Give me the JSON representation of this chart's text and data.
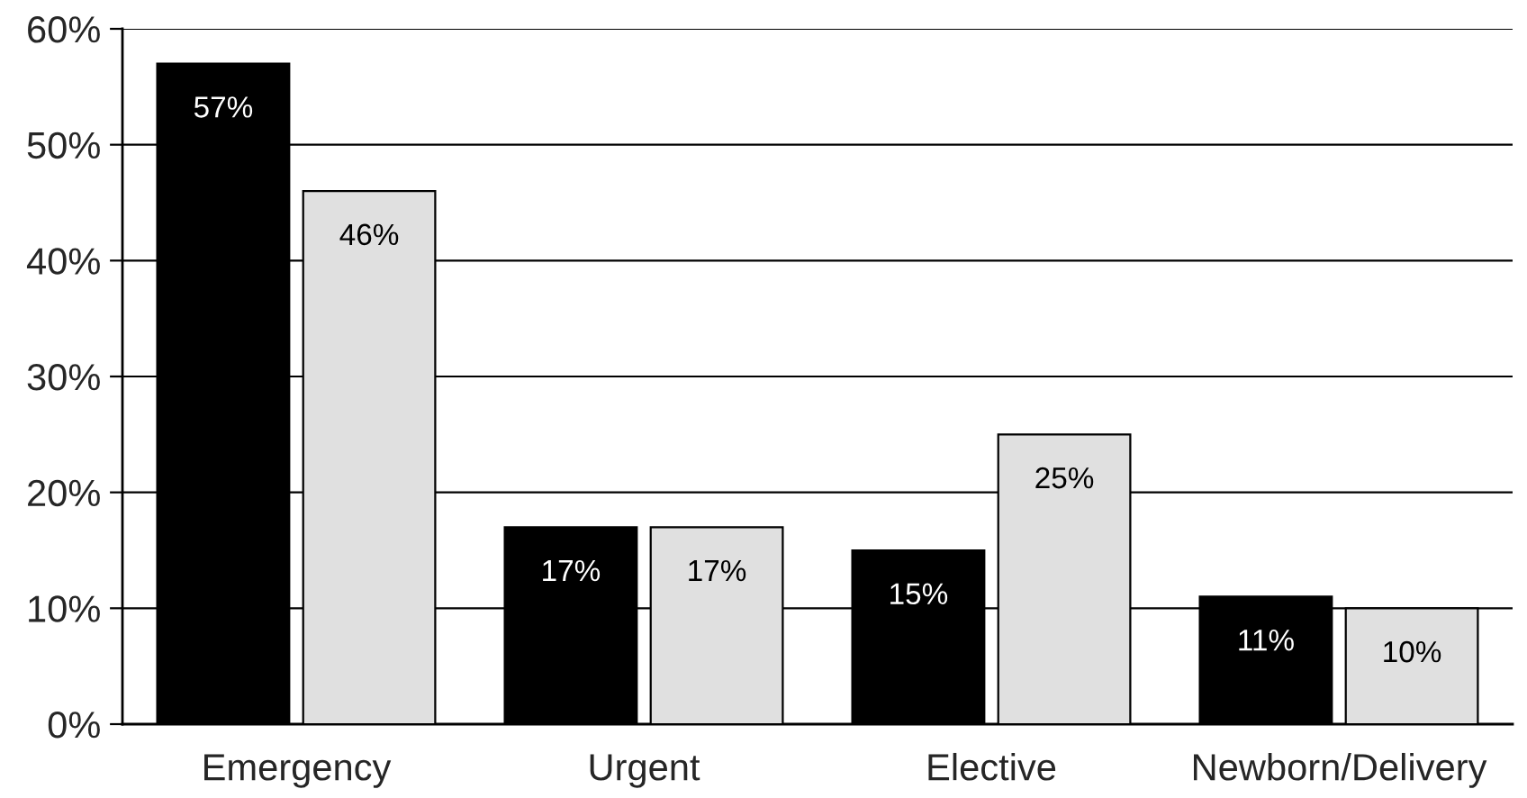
{
  "chart_data": {
    "type": "bar",
    "categories": [
      "Emergency",
      "Urgent",
      "Elective",
      "Newborn/Delivery"
    ],
    "series": [
      {
        "color": "#000000",
        "values": [
          57,
          17,
          15,
          11
        ],
        "value_labels": [
          "57%",
          "17%",
          "15%",
          "11%"
        ]
      },
      {
        "color": "#e0e0e0",
        "values": [
          46,
          17,
          25,
          10
        ],
        "value_labels": [
          "46%",
          "17%",
          "25%",
          "10%"
        ]
      }
    ],
    "ylim": [
      0,
      60
    ],
    "yticks": [
      {
        "value": 0,
        "label": "0%"
      },
      {
        "value": 10,
        "label": "10%"
      },
      {
        "value": 20,
        "label": "20%"
      },
      {
        "value": 30,
        "label": "30%"
      },
      {
        "value": 40,
        "label": "40%"
      },
      {
        "value": 50,
        "label": "50%"
      },
      {
        "value": 60,
        "label": "60%"
      }
    ],
    "grid": "y"
  }
}
